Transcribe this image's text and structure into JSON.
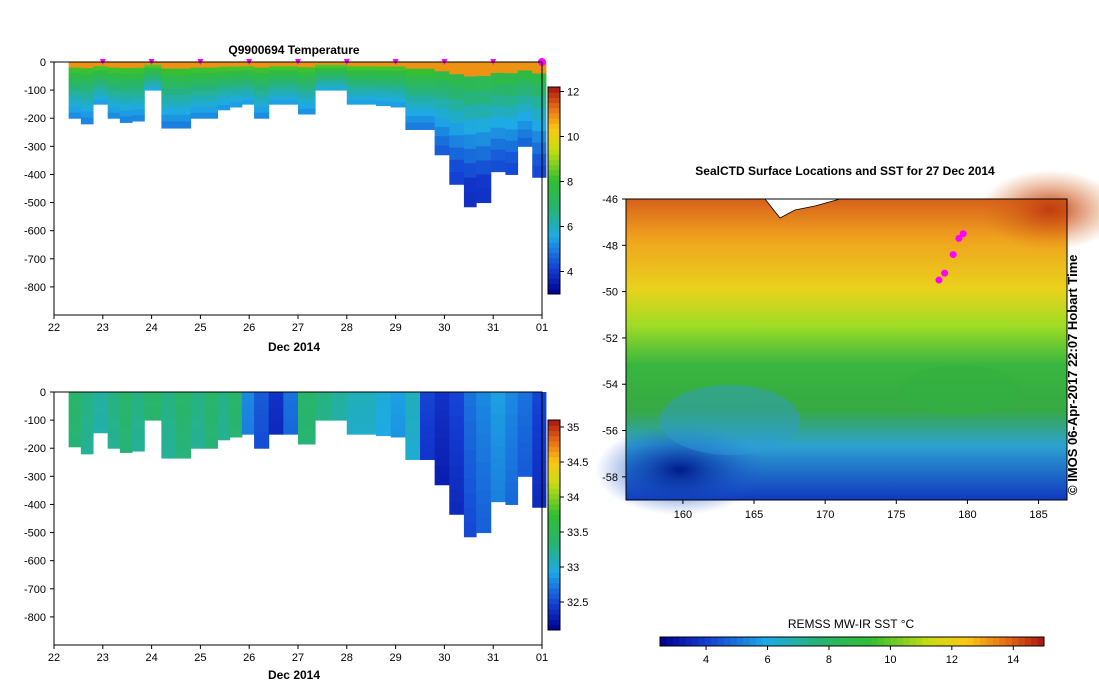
{
  "chart_data": [
    {
      "type": "heatmap",
      "title": "Q9900694  Temperature",
      "xlabel": "Dec 2014",
      "ylabel": "",
      "x_ticks": [
        "22",
        "23",
        "24",
        "25",
        "26",
        "27",
        "28",
        "29",
        "30",
        "31",
        "01"
      ],
      "y_ticks": [
        "0",
        "-100",
        "-200",
        "-300",
        "-400",
        "-500",
        "-600",
        "-700",
        "-800"
      ],
      "ylim": [
        -900,
        0
      ],
      "colorbar": {
        "ticks": [
          "4",
          "6",
          "8",
          "10",
          "12"
        ],
        "range": [
          3,
          12.2
        ]
      },
      "profile_markers_days": [
        23.0,
        24.0,
        25.0,
        26.0,
        27.0,
        28.0,
        29.0,
        30.0,
        31.0,
        32.0
      ],
      "profiles": [
        {
          "t": 22.3,
          "depth": 200
        },
        {
          "t": 22.55,
          "depth": 220
        },
        {
          "t": 22.8,
          "depth": 150
        },
        {
          "t": 23.1,
          "depth": 200
        },
        {
          "t": 23.35,
          "depth": 215
        },
        {
          "t": 23.6,
          "depth": 210
        },
        {
          "t": 23.85,
          "depth": 100
        },
        {
          "t": 24.2,
          "depth": 235
        },
        {
          "t": 24.5,
          "depth": 235
        },
        {
          "t": 24.8,
          "depth": 200
        },
        {
          "t": 25.1,
          "depth": 200
        },
        {
          "t": 25.35,
          "depth": 170
        },
        {
          "t": 25.6,
          "depth": 160
        },
        {
          "t": 25.85,
          "depth": 150
        },
        {
          "t": 26.1,
          "depth": 200
        },
        {
          "t": 26.4,
          "depth": 150
        },
        {
          "t": 26.7,
          "depth": 150
        },
        {
          "t": 27.0,
          "depth": 185
        },
        {
          "t": 27.35,
          "depth": 100
        },
        {
          "t": 27.7,
          "depth": 100
        },
        {
          "t": 28.0,
          "depth": 150
        },
        {
          "t": 28.3,
          "depth": 150
        },
        {
          "t": 28.6,
          "depth": 155
        },
        {
          "t": 28.9,
          "depth": 160
        },
        {
          "t": 29.2,
          "depth": 240
        },
        {
          "t": 29.5,
          "depth": 240
        },
        {
          "t": 29.8,
          "depth": 330
        },
        {
          "t": 30.1,
          "depth": 435
        },
        {
          "t": 30.4,
          "depth": 515
        },
        {
          "t": 30.65,
          "depth": 500
        },
        {
          "t": 30.95,
          "depth": 390
        },
        {
          "t": 31.25,
          "depth": 400
        },
        {
          "t": 31.5,
          "depth": 300
        },
        {
          "t": 31.8,
          "depth": 410
        }
      ]
    },
    {
      "type": "heatmap",
      "title": "",
      "xlabel": "Dec 2014",
      "ylabel": "",
      "x_ticks": [
        "22",
        "23",
        "24",
        "25",
        "26",
        "27",
        "28",
        "29",
        "30",
        "31",
        "01"
      ],
      "y_ticks": [
        "0",
        "-100",
        "-200",
        "-300",
        "-400",
        "-500",
        "-600",
        "-700",
        "-800"
      ],
      "ylim": [
        -900,
        0
      ],
      "colorbar": {
        "ticks": [
          "32.5",
          "33",
          "33.5",
          "34",
          "34.5",
          "35"
        ],
        "range": [
          32.1,
          35.1
        ]
      },
      "profiles": [
        {
          "t": 22.3,
          "depth": 195,
          "s": 33.4
        },
        {
          "t": 22.55,
          "depth": 220,
          "s": 33.3
        },
        {
          "t": 22.8,
          "depth": 145,
          "s": 33.2
        },
        {
          "t": 23.1,
          "depth": 200,
          "s": 33.3
        },
        {
          "t": 23.35,
          "depth": 215,
          "s": 33.4
        },
        {
          "t": 23.6,
          "depth": 210,
          "s": 33.3
        },
        {
          "t": 23.85,
          "depth": 100,
          "s": 33.4
        },
        {
          "t": 24.2,
          "depth": 235,
          "s": 33.3
        },
        {
          "t": 24.5,
          "depth": 235,
          "s": 33.4
        },
        {
          "t": 24.8,
          "depth": 200,
          "s": 33.3
        },
        {
          "t": 25.1,
          "depth": 200,
          "s": 33.4
        },
        {
          "t": 25.35,
          "depth": 170,
          "s": 33.3
        },
        {
          "t": 25.6,
          "depth": 160,
          "s": 33.4
        },
        {
          "t": 25.85,
          "depth": 150,
          "s": 32.8
        },
        {
          "t": 26.1,
          "depth": 200,
          "s": 32.6
        },
        {
          "t": 26.4,
          "depth": 150,
          "s": 32.4
        },
        {
          "t": 26.7,
          "depth": 150,
          "s": 32.7
        },
        {
          "t": 27.0,
          "depth": 185,
          "s": 33.4
        },
        {
          "t": 27.35,
          "depth": 100,
          "s": 33.3
        },
        {
          "t": 27.7,
          "depth": 100,
          "s": 33.2
        },
        {
          "t": 28.0,
          "depth": 150,
          "s": 33.1
        },
        {
          "t": 28.3,
          "depth": 150,
          "s": 33.1
        },
        {
          "t": 28.6,
          "depth": 155,
          "s": 33.0
        },
        {
          "t": 28.9,
          "depth": 160,
          "s": 32.9
        },
        {
          "t": 29.2,
          "depth": 240,
          "s": 33.1
        },
        {
          "t": 29.5,
          "depth": 240,
          "s": 32.5
        },
        {
          "t": 29.8,
          "depth": 330,
          "s": 32.4
        },
        {
          "t": 30.1,
          "depth": 435,
          "s": 32.5
        },
        {
          "t": 30.4,
          "depth": 515,
          "s": 32.7
        },
        {
          "t": 30.65,
          "depth": 500,
          "s": 32.8
        },
        {
          "t": 30.95,
          "depth": 390,
          "s": 32.9
        },
        {
          "t": 31.25,
          "depth": 400,
          "s": 32.8
        },
        {
          "t": 31.5,
          "depth": 300,
          "s": 32.7
        },
        {
          "t": 31.8,
          "depth": 410,
          "s": 32.5
        }
      ]
    },
    {
      "type": "heatmap",
      "title": "SealCTD Surface Locations and SST for 27 Dec 2014",
      "xlabel": "",
      "ylabel": "",
      "x_ticks": [
        "160",
        "165",
        "170",
        "175",
        "180",
        "185"
      ],
      "y_ticks": [
        "-46",
        "-48",
        "-50",
        "-52",
        "-54",
        "-56",
        "-58"
      ],
      "xlim": [
        156,
        187
      ],
      "ylim": [
        -59,
        -46
      ],
      "colorbar": {
        "label": "REMSS MW-IR SST °C",
        "ticks": [
          "4",
          "6",
          "8",
          "10",
          "12",
          "14"
        ],
        "range": [
          2.5,
          15
        ]
      },
      "side_label": "© IMOS 06-Apr-2017 22:07 Hobart Time",
      "surface_locations": [
        {
          "lon": 179.7,
          "lat": -47.5
        },
        {
          "lon": 179.4,
          "lat": -47.7
        },
        {
          "lon": 179.0,
          "lat": -48.4
        },
        {
          "lon": 178.4,
          "lat": -49.2
        },
        {
          "lon": 178.0,
          "lat": -49.5
        }
      ]
    }
  ],
  "colors": {
    "magenta": "#ff00ff",
    "axis": "#000000"
  }
}
